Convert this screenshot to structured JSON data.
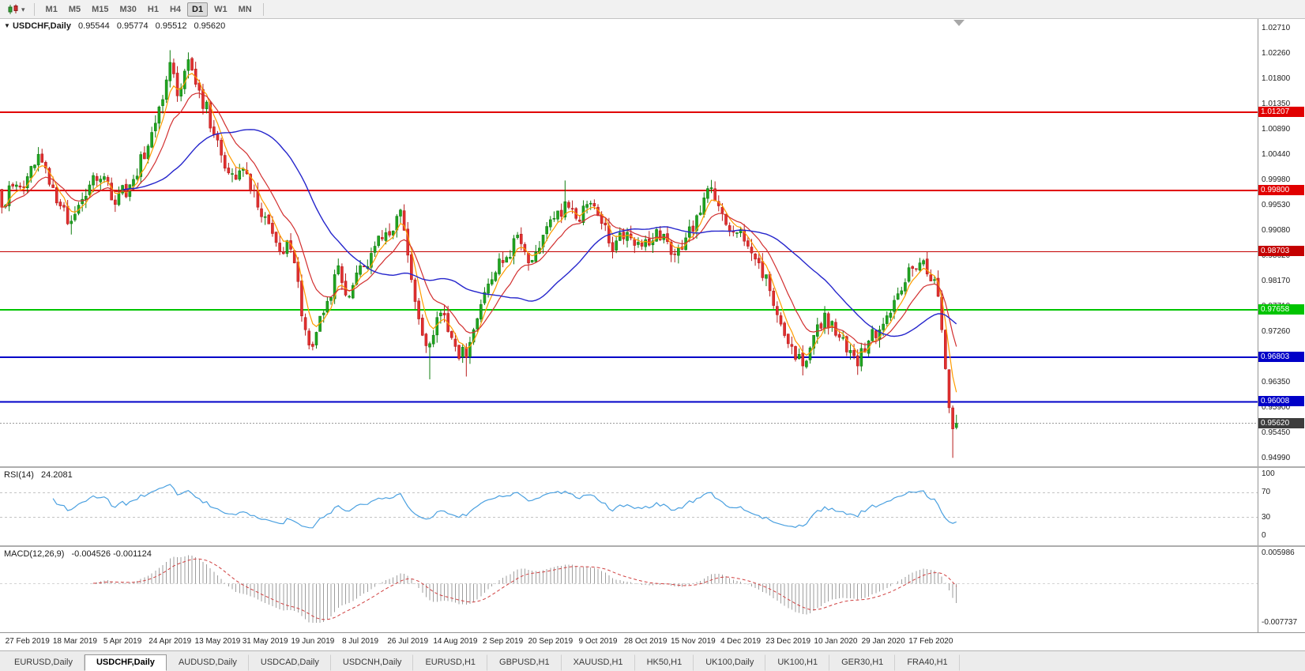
{
  "icons": {
    "title_marker": "▼",
    "timeframe_caret": "▾"
  },
  "toolbar": {
    "chart_icon": "candlestick-chart-icon",
    "timeframes": [
      {
        "label": "M1",
        "active": false
      },
      {
        "label": "M5",
        "active": false
      },
      {
        "label": "M15",
        "active": false
      },
      {
        "label": "M30",
        "active": false
      },
      {
        "label": "H1",
        "active": false
      },
      {
        "label": "H4",
        "active": false
      },
      {
        "label": "D1",
        "active": true
      },
      {
        "label": "W1",
        "active": false
      },
      {
        "label": "MN",
        "active": false
      }
    ]
  },
  "chart": {
    "title": {
      "symbol": "USDCHF,Daily",
      "open": "0.95544",
      "high": "0.95774",
      "low": "0.95512",
      "close": "0.95620"
    }
  },
  "chart_data": {
    "type": "candlestick",
    "title": "USDCHF,Daily",
    "n": 262,
    "price_anchors": [
      [
        0,
        0.995
      ],
      [
        4,
        0.999
      ],
      [
        7,
        1.0005
      ],
      [
        10,
        1.0045
      ],
      [
        14,
        0.9985
      ],
      [
        17,
        0.995
      ],
      [
        19,
        0.9925
      ],
      [
        24,
        0.999
      ],
      [
        28,
        1.0005
      ],
      [
        31,
        0.9955
      ],
      [
        36,
        1.0
      ],
      [
        40,
        1.006
      ],
      [
        43,
        1.013
      ],
      [
        46,
        1.021
      ],
      [
        48,
        1.015
      ],
      [
        51,
        1.0215
      ],
      [
        54,
        1.016
      ],
      [
        58,
        1.008
      ],
      [
        61,
        1.002
      ],
      [
        64,
        1.0
      ],
      [
        67,
        1.001
      ],
      [
        70,
        0.995
      ],
      [
        73,
        0.992
      ],
      [
        76,
        0.987
      ],
      [
        78,
        0.989
      ],
      [
        80,
        0.985
      ],
      [
        83,
        0.973
      ],
      [
        85,
        0.97
      ],
      [
        88,
        0.976
      ],
      [
        92,
        0.9845
      ],
      [
        95,
        0.979
      ],
      [
        98,
        0.9845
      ],
      [
        102,
        0.988
      ],
      [
        106,
        0.99
      ],
      [
        109,
        0.9945
      ],
      [
        112,
        0.982
      ],
      [
        115,
        0.972
      ],
      [
        117,
        0.9705
      ],
      [
        120,
        0.976
      ],
      [
        124,
        0.97
      ],
      [
        127,
        0.968
      ],
      [
        130,
        0.975
      ],
      [
        134,
        0.982
      ],
      [
        138,
        0.986
      ],
      [
        141,
        0.99
      ],
      [
        144,
        0.985
      ],
      [
        148,
        0.99
      ],
      [
        151,
        0.993
      ],
      [
        154,
        0.996
      ],
      [
        157,
        0.993
      ],
      [
        160,
        0.9955
      ],
      [
        163,
        0.9935
      ],
      [
        167,
        0.987
      ],
      [
        171,
        0.9905
      ],
      [
        175,
        0.988
      ],
      [
        179,
        0.991
      ],
      [
        183,
        0.9865
      ],
      [
        187,
        0.9895
      ],
      [
        190,
        0.9935
      ],
      [
        194,
        0.9985
      ],
      [
        197,
        0.994
      ],
      [
        200,
        0.9905
      ],
      [
        204,
        0.988
      ],
      [
        207,
        0.985
      ],
      [
        210,
        0.98
      ],
      [
        213,
        0.974
      ],
      [
        216,
        0.97
      ],
      [
        219,
        0.9665
      ],
      [
        222,
        0.972
      ],
      [
        225,
        0.976
      ],
      [
        228,
        0.972
      ],
      [
        231,
        0.969
      ],
      [
        234,
        0.9665
      ],
      [
        237,
        0.971
      ],
      [
        240,
        0.973
      ],
      [
        243,
        0.976
      ],
      [
        246,
        0.98
      ],
      [
        249,
        0.984
      ],
      [
        251,
        0.985
      ],
      [
        253,
        0.983
      ],
      [
        255,
        0.982
      ],
      [
        256,
        0.979
      ],
      [
        257,
        0.973
      ],
      [
        258,
        0.966
      ],
      [
        259,
        0.959
      ],
      [
        260,
        0.9552
      ],
      [
        261,
        0.9562
      ]
    ],
    "wick_overrides": {
      "10": {
        "h": 1.0058
      },
      "19": {
        "l": 0.9901
      },
      "46": {
        "h": 1.0232
      },
      "51": {
        "h": 1.0228
      },
      "85": {
        "l": 0.9693
      },
      "117": {
        "l": 0.9641
      },
      "127": {
        "l": 0.9646
      },
      "154": {
        "h": 0.9998
      },
      "194": {
        "h": 0.9999
      },
      "219": {
        "l": 0.9648
      },
      "234": {
        "l": 0.9649
      },
      "260": {
        "l": 0.95
      },
      "261": {
        "o": 0.95544,
        "h": 0.95774,
        "l": 0.95512,
        "c": 0.9562
      }
    },
    "y_axis": {
      "min": 0.9499,
      "max": 1.0271,
      "ticks": [
        "1.02710",
        "1.02260",
        "1.01800",
        "1.01350",
        "1.00890",
        "1.00440",
        "0.99980",
        "0.99530",
        "0.99080",
        "0.98620",
        "0.98170",
        "0.97710",
        "0.97260",
        "0.96800",
        "0.96350",
        "0.95900",
        "0.95450",
        "0.94990"
      ]
    },
    "x_labels": {
      "start_index": 7,
      "step": 13,
      "labels": [
        "27 Feb 2019",
        "18 Mar 2019",
        "5 Apr 2019",
        "24 Apr 2019",
        "13 May 2019",
        "31 May 2019",
        "19 Jun 2019",
        "8 Jul 2019",
        "26 Jul 2019",
        "14 Aug 2019",
        "2 Sep 2019",
        "20 Sep 2019",
        "9 Oct 2019",
        "28 Oct 2019",
        "15 Nov 2019",
        "4 Dec 2019",
        "23 Dec 2019",
        "10 Jan 2020",
        "29 Jan 2020",
        "17 Feb 2020"
      ]
    },
    "hlines": [
      {
        "value": "1.01207",
        "price": 1.01207,
        "color": "#e10000",
        "width": 2
      },
      {
        "value": "0.99800",
        "price": 0.998,
        "color": "#e10000",
        "width": 2
      },
      {
        "value": "0.98703",
        "price": 0.98703,
        "color": "#c40000",
        "width": 1
      },
      {
        "value": "0.97658",
        "price": 0.97658,
        "color": "#00c400",
        "width": 2
      },
      {
        "value": "0.96803",
        "price": 0.96803,
        "color": "#0000c8",
        "width": 2
      },
      {
        "value": "0.96008",
        "price": 0.96008,
        "color": "#0000c8",
        "width": 2
      }
    ],
    "current_price": {
      "label": "0.95620",
      "price": 0.9562,
      "badge_color": "#3c3c3c",
      "line_color": "#9a9a9a"
    },
    "moving_averages": [
      {
        "name": "ma-fast",
        "method": "ema",
        "period": 5,
        "color": "#ff9c00",
        "width": 1.2
      },
      {
        "name": "ma-medium",
        "method": "ema",
        "period": 13,
        "color": "#d22f2f",
        "width": 1.2
      },
      {
        "name": "ma-slow",
        "method": "sma",
        "period": 34,
        "color": "#2525cc",
        "width": 1.4
      }
    ],
    "indicators": {
      "rsi": {
        "label": "RSI(14)",
        "value_label": "24.2081",
        "period": 14,
        "color": "#4aa0e0",
        "levels": [
          70,
          30
        ],
        "axis_ticks": [
          "100",
          "70",
          "30",
          "0"
        ],
        "range": [
          0,
          100
        ]
      },
      "macd": {
        "label": "MACD(12,26,9)",
        "value_labels": "-0.004526 -0.001124",
        "fast": 12,
        "slow": 26,
        "signal": 9,
        "bar_color": "#9e9e9e",
        "signal_color": "#d04040",
        "axis_ticks": [
          "0.005986",
          "-0.007737"
        ],
        "range": [
          -0.007737,
          0.005986
        ]
      }
    },
    "colors": {
      "up": "#21a621",
      "up_stroke": "#0f7d0f",
      "down": "#e23030",
      "down_stroke": "#b81c1c",
      "background": "#ffffff"
    }
  },
  "tabs": [
    {
      "label": "EURUSD,Daily",
      "active": false
    },
    {
      "label": "USDCHF,Daily",
      "active": true
    },
    {
      "label": "AUDUSD,Daily",
      "active": false
    },
    {
      "label": "USDCAD,Daily",
      "active": false
    },
    {
      "label": "USDCNH,Daily",
      "active": false
    },
    {
      "label": "EURUSD,H1",
      "active": false
    },
    {
      "label": "GBPUSD,H1",
      "active": false
    },
    {
      "label": "XAUUSD,H1",
      "active": false
    },
    {
      "label": "HK50,H1",
      "active": false
    },
    {
      "label": "UK100,Daily",
      "active": false
    },
    {
      "label": "UK100,H1",
      "active": false
    },
    {
      "label": "GER30,H1",
      "active": false
    },
    {
      "label": "FRA40,H1",
      "active": false
    }
  ]
}
